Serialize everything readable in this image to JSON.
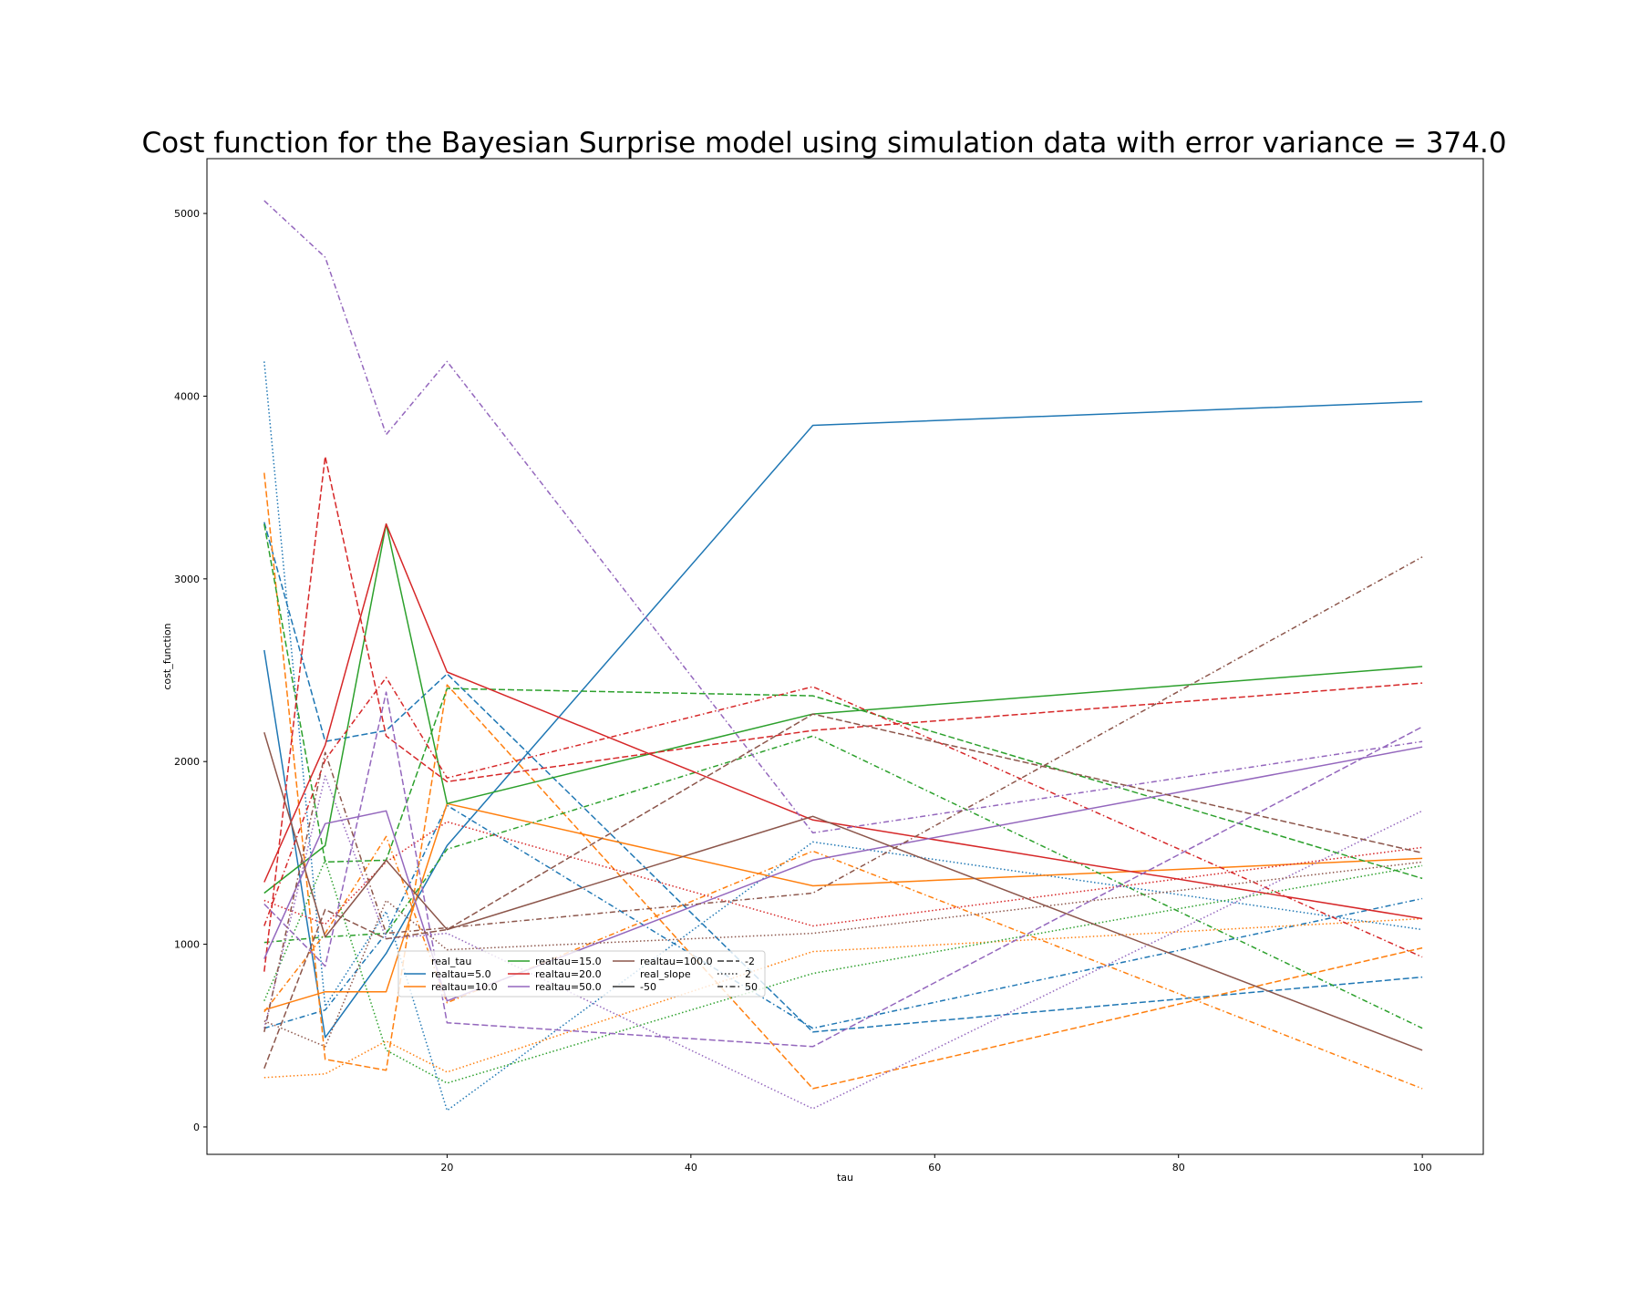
{
  "chart_data": {
    "type": "line",
    "title": "Cost function for the Bayesian Surprise model using simulation data with error variance = 374.0",
    "xlabel": "tau",
    "ylabel": "cost_function",
    "x": [
      5,
      10,
      15,
      20,
      50,
      100
    ],
    "xlim": [
      0.3,
      105
    ],
    "ylim": [
      -150,
      5300
    ],
    "xticks": [
      20,
      40,
      60,
      80,
      100
    ],
    "yticks": [
      0,
      1000,
      2000,
      3000,
      4000,
      5000
    ],
    "grid": false,
    "legend": {
      "placement": "lower-left-center",
      "columns": [
        [
          {
            "kind": "header",
            "label": "real_tau"
          },
          {
            "kind": "entry",
            "label": "realtau=5.0",
            "color": "#1f77b4",
            "style": "solid"
          },
          {
            "kind": "entry",
            "label": "realtau=10.0",
            "color": "#ff7f0e",
            "style": "solid"
          }
        ],
        [
          {
            "kind": "entry",
            "label": "realtau=15.0",
            "color": "#2ca02c",
            "style": "solid"
          },
          {
            "kind": "entry",
            "label": "realtau=20.0",
            "color": "#d62728",
            "style": "solid"
          },
          {
            "kind": "entry",
            "label": "realtau=50.0",
            "color": "#9467bd",
            "style": "solid"
          }
        ],
        [
          {
            "kind": "entry",
            "label": "realtau=100.0",
            "color": "#8c564b",
            "style": "solid"
          },
          {
            "kind": "header",
            "label": "real_slope"
          },
          {
            "kind": "entry",
            "label": "-50",
            "color": "#333333",
            "style": "solid"
          }
        ],
        [
          {
            "kind": "entry",
            "label": "-2",
            "color": "#333333",
            "style": "dashed"
          },
          {
            "kind": "entry",
            "label": "2",
            "color": "#333333",
            "style": "dotted"
          },
          {
            "kind": "entry",
            "label": "50",
            "color": "#333333",
            "style": "dashdot"
          }
        ]
      ]
    },
    "series": [
      {
        "realtau": "5.0",
        "slope": "-50",
        "color": "#1f77b4",
        "style": "solid",
        "values": [
          2610,
          490,
          950,
          1540,
          3840,
          3970
        ]
      },
      {
        "realtau": "5.0",
        "slope": "-2",
        "color": "#1f77b4",
        "style": "dashed",
        "values": [
          3310,
          2110,
          2170,
          2480,
          520,
          820
        ]
      },
      {
        "realtau": "5.0",
        "slope": "2",
        "color": "#1f77b4",
        "style": "dotted",
        "values": [
          4190,
          660,
          1180,
          90,
          1560,
          1080
        ]
      },
      {
        "realtau": "5.0",
        "slope": "50",
        "color": "#1f77b4",
        "style": "dashdot",
        "values": [
          540,
          640,
          1060,
          1760,
          540,
          1250
        ]
      },
      {
        "realtau": "10.0",
        "slope": "-50",
        "color": "#ff7f0e",
        "style": "solid",
        "values": [
          640,
          740,
          740,
          1770,
          1320,
          1470
        ]
      },
      {
        "realtau": "10.0",
        "slope": "-2",
        "color": "#ff7f0e",
        "style": "dashed",
        "values": [
          3580,
          370,
          310,
          2420,
          210,
          980
        ]
      },
      {
        "realtau": "10.0",
        "slope": "2",
        "color": "#ff7f0e",
        "style": "dotted",
        "values": [
          270,
          290,
          470,
          300,
          960,
          1140
        ]
      },
      {
        "realtau": "10.0",
        "slope": "50",
        "color": "#ff7f0e",
        "style": "dashdot",
        "values": [
          630,
          1060,
          1590,
          680,
          1510,
          210
        ]
      },
      {
        "realtau": "15.0",
        "slope": "-50",
        "color": "#2ca02c",
        "style": "solid",
        "values": [
          1280,
          1540,
          3300,
          1770,
          2260,
          2520
        ]
      },
      {
        "realtau": "15.0",
        "slope": "-2",
        "color": "#2ca02c",
        "style": "dashed",
        "values": [
          3300,
          1450,
          1460,
          2400,
          2360,
          1360
        ]
      },
      {
        "realtau": "15.0",
        "slope": "2",
        "color": "#2ca02c",
        "style": "dotted",
        "values": [
          690,
          1460,
          420,
          240,
          840,
          1430
        ]
      },
      {
        "realtau": "15.0",
        "slope": "50",
        "color": "#2ca02c",
        "style": "dashdot",
        "values": [
          1010,
          1040,
          1060,
          1520,
          2140,
          540
        ]
      },
      {
        "realtau": "20.0",
        "slope": "-50",
        "color": "#d62728",
        "style": "solid",
        "values": [
          1340,
          2090,
          3300,
          2490,
          1680,
          1140
        ]
      },
      {
        "realtau": "20.0",
        "slope": "-2",
        "color": "#d62728",
        "style": "dashed",
        "values": [
          850,
          3670,
          2140,
          1890,
          2170,
          2430
        ]
      },
      {
        "realtau": "20.0",
        "slope": "2",
        "color": "#d62728",
        "style": "dotted",
        "values": [
          1240,
          1110,
          1450,
          1670,
          1100,
          1530
        ]
      },
      {
        "realtau": "20.0",
        "slope": "50",
        "color": "#d62728",
        "style": "dashdot",
        "values": [
          1100,
          2010,
          2460,
          1910,
          2410,
          930
        ]
      },
      {
        "realtau": "50.0",
        "slope": "-50",
        "color": "#9467bd",
        "style": "solid",
        "values": [
          920,
          1660,
          1730,
          690,
          1460,
          2080
        ]
      },
      {
        "realtau": "50.0",
        "slope": "-2",
        "color": "#9467bd",
        "style": "dashed",
        "values": [
          1220,
          880,
          2380,
          570,
          440,
          2190
        ]
      },
      {
        "realtau": "50.0",
        "slope": "2",
        "color": "#9467bd",
        "style": "dotted",
        "values": [
          540,
          1920,
          1030,
          1060,
          100,
          1730
        ]
      },
      {
        "realtau": "50.0",
        "slope": "50",
        "color": "#9467bd",
        "style": "dashdot",
        "values": [
          5070,
          4760,
          3790,
          4190,
          1610,
          2110
        ]
      },
      {
        "realtau": "100.0",
        "slope": "-50",
        "color": "#8c564b",
        "style": "solid",
        "values": [
          2160,
          1040,
          1460,
          1080,
          1700,
          420
        ]
      },
      {
        "realtau": "100.0",
        "slope": "-2",
        "color": "#8c564b",
        "style": "dashed",
        "values": [
          320,
          1190,
          1030,
          1080,
          2260,
          1500
        ]
      },
      {
        "realtau": "100.0",
        "slope": "2",
        "color": "#8c564b",
        "style": "dotted",
        "values": [
          580,
          440,
          1240,
          970,
          1060,
          1450
        ]
      },
      {
        "realtau": "100.0",
        "slope": "50",
        "color": "#8c564b",
        "style": "dashdot",
        "values": [
          520,
          2050,
          1060,
          1090,
          1280,
          3120
        ]
      }
    ]
  }
}
